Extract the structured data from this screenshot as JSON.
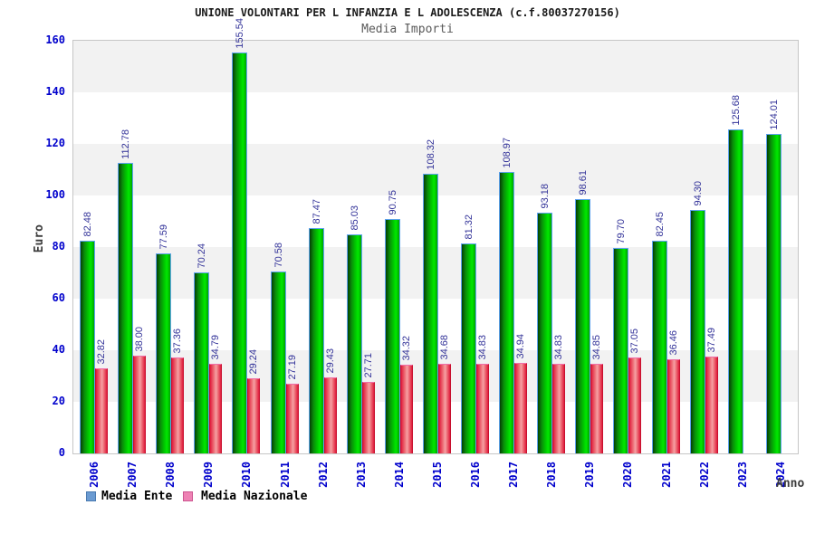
{
  "header": {
    "title": "UNIONE VOLONTARI PER L INFANZIA E L ADOLESCENZA (c.f.80037270156)",
    "subtitle": "Media Importi"
  },
  "axes": {
    "y_title": "Euro",
    "x_title": "Anno"
  },
  "legend": {
    "ente_label": "Media Ente",
    "nazionale_label": "Media Nazionale"
  },
  "colors": {
    "bar_green": "#00c400",
    "bar_green_border": "#5ea2ef",
    "bar_red": "#e01b3c",
    "bar_red_border": "#f06ea8",
    "legend_ente": "#6b9bd2",
    "legend_nazionale": "#ee82b4",
    "value_label": "#333399",
    "axis_tick": "#0000cc",
    "band_gray": "#f2f2f2"
  },
  "chart_data": {
    "type": "bar",
    "title": "UNIONE VOLONTARI PER L INFANZIA E L ADOLESCENZA (c.f.80037270156)",
    "subtitle": "Media Importi",
    "xlabel": "Anno",
    "ylabel": "Euro",
    "ylim": [
      0,
      160
    ],
    "yticks": [
      0,
      20,
      40,
      60,
      80,
      100,
      120,
      140,
      160
    ],
    "grid": "horizontal-bands",
    "legend_position": "bottom-left",
    "categories": [
      "2006",
      "2007",
      "2008",
      "2009",
      "2010",
      "2011",
      "2012",
      "2013",
      "2014",
      "2015",
      "2016",
      "2017",
      "2018",
      "2019",
      "2020",
      "2021",
      "2022",
      "2023",
      "2024"
    ],
    "series": [
      {
        "name": "Media Ente",
        "color": "#00c400",
        "values": [
          82.48,
          112.78,
          77.59,
          70.24,
          155.54,
          70.58,
          87.47,
          85.03,
          90.75,
          108.32,
          81.32,
          108.97,
          93.18,
          98.61,
          79.7,
          82.45,
          94.3,
          125.68,
          124.01
        ]
      },
      {
        "name": "Media Nazionale",
        "color": "#e01b3c",
        "values": [
          32.82,
          38.0,
          37.36,
          34.79,
          29.24,
          27.19,
          29.43,
          27.71,
          34.32,
          34.68,
          34.83,
          34.94,
          34.83,
          34.85,
          37.05,
          36.46,
          37.49,
          null,
          null
        ]
      }
    ]
  }
}
